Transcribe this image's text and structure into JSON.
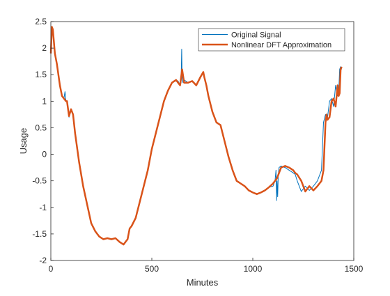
{
  "chart_data": {
    "type": "line",
    "title": "",
    "xlabel": "Minutes",
    "ylabel": "Usage",
    "xlim": [
      0,
      1500
    ],
    "ylim": [
      -2,
      2.5
    ],
    "xticks": [
      0,
      500,
      1000,
      1500
    ],
    "yticks": [
      -2,
      -1.5,
      -1,
      -0.5,
      0,
      0.5,
      1,
      1.5,
      2,
      2.5
    ],
    "xtick_labels": [
      "0",
      "500",
      "1000",
      "1500"
    ],
    "ytick_labels": [
      "-2",
      "-1.5",
      "-1",
      "-0.5",
      "0",
      "0.5",
      "1",
      "1.5",
      "2",
      "2.5"
    ],
    "grid": false,
    "legend_position": "top-right",
    "series": [
      {
        "name": "Original Signal",
        "color": "#0072BD",
        "x": [
          0,
          5,
          10,
          20,
          30,
          45,
          55,
          65,
          70,
          75,
          80,
          90,
          100,
          110,
          120,
          140,
          160,
          180,
          200,
          220,
          240,
          260,
          280,
          300,
          320,
          340,
          360,
          370,
          380,
          390,
          400,
          420,
          440,
          460,
          480,
          500,
          520,
          540,
          560,
          580,
          600,
          620,
          630,
          640,
          645,
          648,
          650,
          655,
          660,
          680,
          700,
          720,
          740,
          755,
          760,
          770,
          780,
          800,
          820,
          840,
          860,
          880,
          900,
          920,
          940,
          960,
          980,
          1000,
          1020,
          1040,
          1060,
          1080,
          1100,
          1110,
          1115,
          1118,
          1120,
          1123,
          1126,
          1130,
          1140,
          1160,
          1180,
          1200,
          1210,
          1220,
          1240,
          1260,
          1280,
          1300,
          1320,
          1340,
          1350,
          1360,
          1365,
          1370,
          1380,
          1390,
          1400,
          1410,
          1420,
          1425,
          1430,
          1435,
          1440
        ],
        "y": [
          1.9,
          2.4,
          2.35,
          1.9,
          1.7,
          1.3,
          1.1,
          1.05,
          1.18,
          1.0,
          1.0,
          0.7,
          0.85,
          0.75,
          0.4,
          -0.15,
          -0.6,
          -0.95,
          -1.3,
          -1.45,
          -1.55,
          -1.6,
          -1.58,
          -1.6,
          -1.58,
          -1.65,
          -1.7,
          -1.65,
          -1.6,
          -1.4,
          -1.35,
          -1.2,
          -0.9,
          -0.6,
          -0.3,
          0.1,
          0.4,
          0.7,
          1.0,
          1.2,
          1.35,
          1.4,
          1.38,
          1.3,
          1.35,
          1.98,
          1.4,
          1.35,
          1.4,
          1.35,
          1.38,
          1.3,
          1.45,
          1.55,
          1.45,
          1.3,
          1.1,
          0.8,
          0.6,
          0.55,
          0.25,
          -0.05,
          -0.3,
          -0.5,
          -0.55,
          -0.6,
          -0.68,
          -0.72,
          -0.75,
          -0.72,
          -0.68,
          -0.62,
          -0.6,
          -0.5,
          -0.3,
          -0.87,
          -0.5,
          -0.8,
          -0.4,
          -0.25,
          -0.22,
          -0.25,
          -0.3,
          -0.35,
          -0.38,
          -0.5,
          -0.7,
          -0.6,
          -0.68,
          -0.6,
          -0.5,
          -0.3,
          0.6,
          0.75,
          0.65,
          0.7,
          1.0,
          1.05,
          0.9,
          1.3,
          1.1,
          1.15,
          1.6,
          1.65,
          1.6
        ]
      },
      {
        "name": "Nonlinear DFT Approximation",
        "color": "#D95319",
        "x": [
          0,
          5,
          10,
          20,
          30,
          45,
          55,
          65,
          75,
          80,
          90,
          100,
          110,
          120,
          140,
          160,
          180,
          200,
          220,
          240,
          260,
          280,
          300,
          320,
          340,
          360,
          370,
          380,
          390,
          400,
          420,
          440,
          460,
          480,
          500,
          520,
          540,
          560,
          580,
          600,
          620,
          630,
          640,
          650,
          660,
          680,
          700,
          720,
          740,
          755,
          760,
          770,
          780,
          800,
          820,
          840,
          860,
          880,
          900,
          920,
          940,
          960,
          980,
          1000,
          1020,
          1040,
          1060,
          1080,
          1100,
          1120,
          1140,
          1160,
          1180,
          1200,
          1210,
          1220,
          1240,
          1260,
          1280,
          1300,
          1320,
          1340,
          1350,
          1360,
          1365,
          1370,
          1380,
          1390,
          1400,
          1410,
          1420,
          1425,
          1430,
          1435,
          1440
        ],
        "y": [
          1.9,
          2.4,
          2.35,
          1.9,
          1.7,
          1.3,
          1.1,
          1.05,
          1.0,
          1.0,
          0.72,
          0.85,
          0.75,
          0.4,
          -0.15,
          -0.6,
          -0.95,
          -1.3,
          -1.45,
          -1.55,
          -1.6,
          -1.58,
          -1.6,
          -1.58,
          -1.65,
          -1.7,
          -1.65,
          -1.6,
          -1.4,
          -1.35,
          -1.2,
          -0.9,
          -0.6,
          -0.3,
          0.1,
          0.4,
          0.7,
          1.0,
          1.2,
          1.35,
          1.4,
          1.35,
          1.3,
          1.6,
          1.35,
          1.35,
          1.38,
          1.3,
          1.45,
          1.55,
          1.45,
          1.3,
          1.1,
          0.8,
          0.6,
          0.55,
          0.25,
          -0.05,
          -0.3,
          -0.5,
          -0.55,
          -0.6,
          -0.68,
          -0.72,
          -0.75,
          -0.72,
          -0.68,
          -0.62,
          -0.55,
          -0.45,
          -0.25,
          -0.22,
          -0.25,
          -0.3,
          -0.35,
          -0.38,
          -0.5,
          -0.7,
          -0.6,
          -0.68,
          -0.6,
          -0.5,
          -0.3,
          0.6,
          0.75,
          0.65,
          0.7,
          1.0,
          1.05,
          0.9,
          1.3,
          1.1,
          1.15,
          1.6,
          1.65
        ]
      }
    ]
  }
}
